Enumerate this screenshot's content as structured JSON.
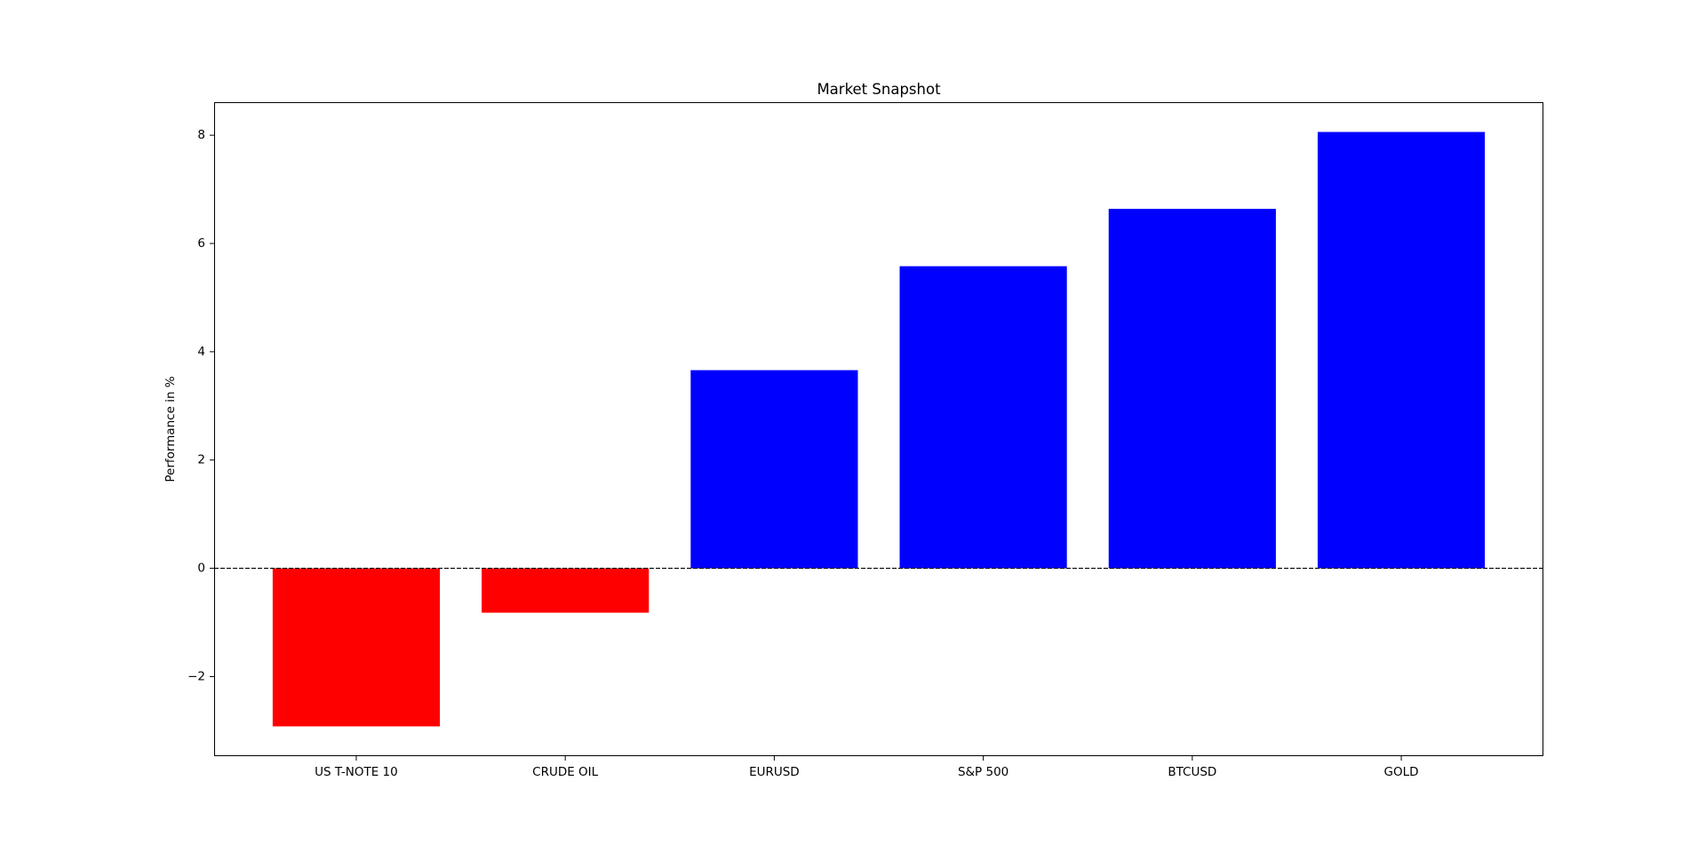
{
  "chart_data": {
    "type": "bar",
    "title": "Market Snapshot",
    "xlabel": "",
    "ylabel": "Performance in %",
    "categories": [
      "US T-NOTE 10",
      "CRUDE OIL",
      "EURUSD",
      "S&P 500",
      "BTCUSD",
      "GOLD"
    ],
    "values": [
      -2.92,
      -0.82,
      3.66,
      5.58,
      6.64,
      8.06
    ],
    "ylim": [
      -3.47,
      8.61
    ],
    "yticks": [
      -2,
      0,
      2,
      4,
      6,
      8
    ],
    "ytick_labels": [
      "−2",
      "0",
      "2",
      "4",
      "6",
      "8"
    ],
    "colors": {
      "positive": "#0000ff",
      "negative": "#ff0000",
      "zero_line": "#000000"
    },
    "zero_line_style": "dashed",
    "grid": false,
    "legend": "none"
  }
}
